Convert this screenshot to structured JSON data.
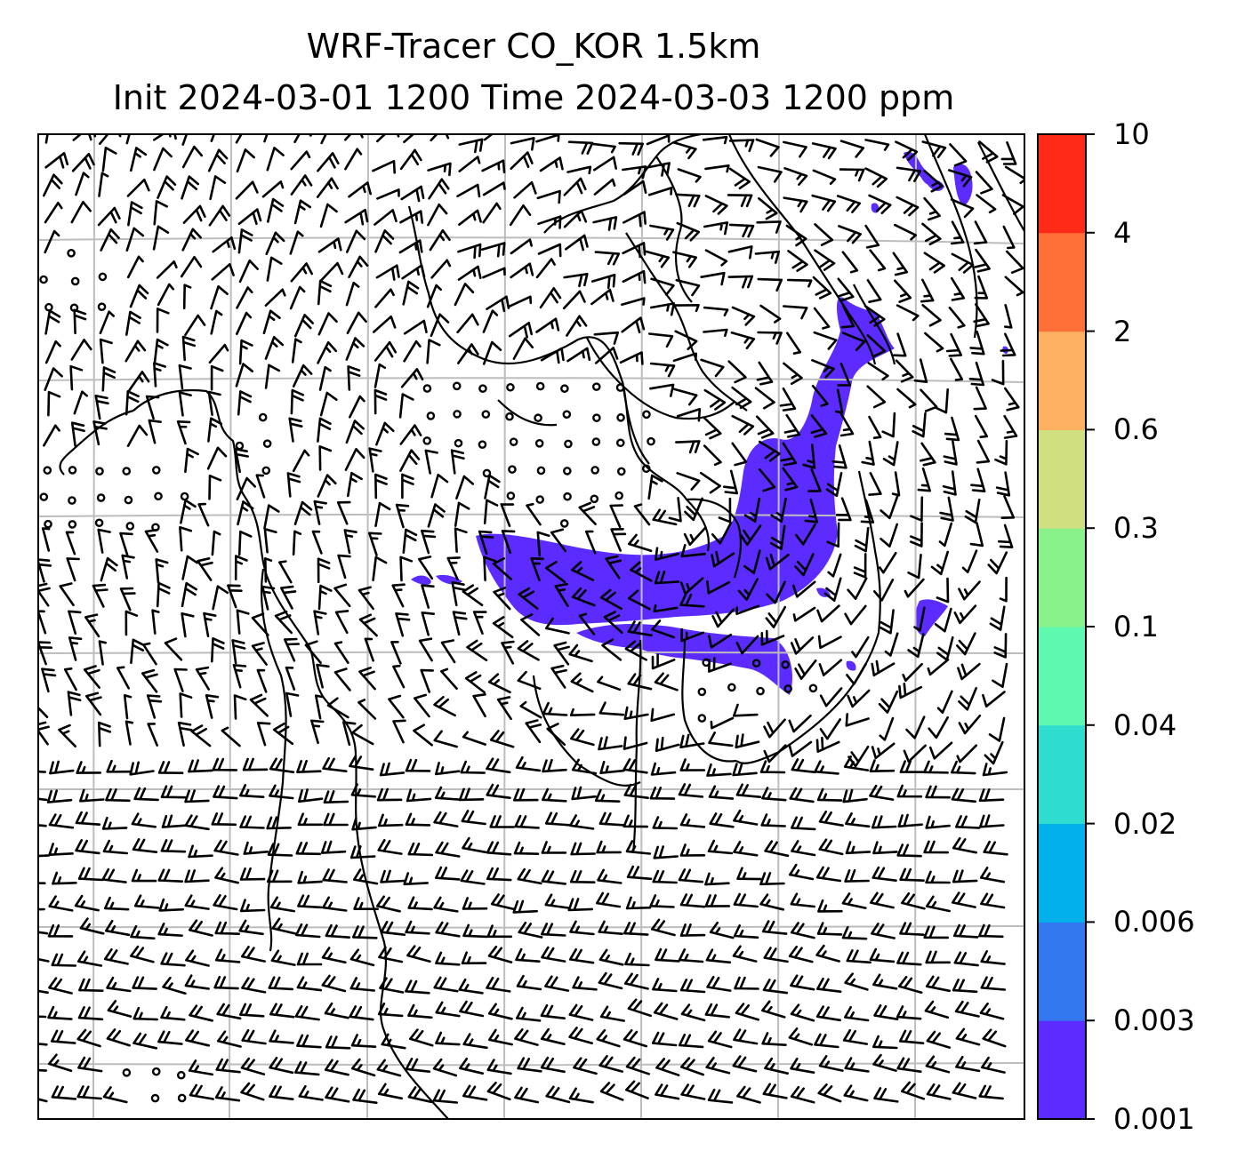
{
  "title": {
    "line1": "WRF-Tracer CO_KOR 1.5km",
    "line2": "Init 2024-03-01 1200 Time 2024-03-03 1200 ppm"
  },
  "colorbar": {
    "levels": [
      "0.001",
      "0.003",
      "0.006",
      "0.02",
      "0.04",
      "0.1",
      "0.3",
      "0.6",
      "2",
      "4",
      "10"
    ],
    "colors": [
      "#5b2bff",
      "#3478f0",
      "#00b0ea",
      "#2fdcd0",
      "#5ef8b0",
      "#8af28a",
      "#d0e080",
      "#fdb060",
      "#ff7038",
      "#ff2a18"
    ]
  },
  "plume_color": "#5b2bff",
  "gridline_color": "#bdbdbd"
}
